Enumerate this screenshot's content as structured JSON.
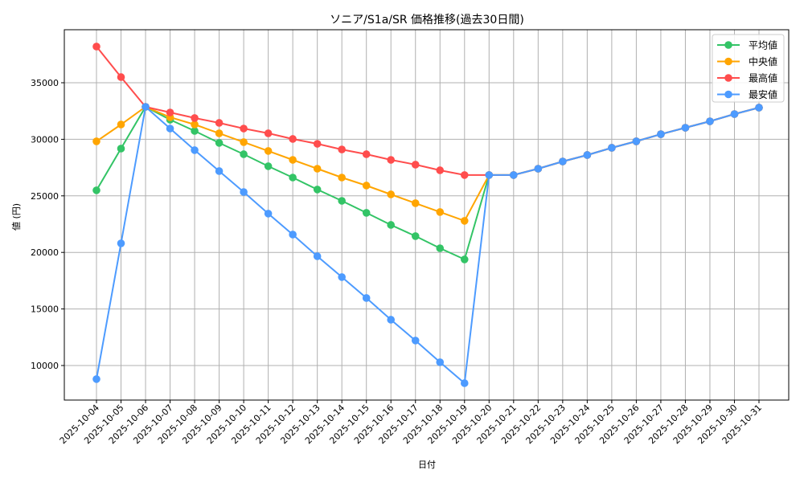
{
  "chart_data": {
    "type": "line",
    "title": "ソニア/S1a/SR 価格推移(過去30日間)",
    "xlabel": "日付",
    "ylabel": "値 (円)",
    "ylim": [
      6900,
      39500
    ],
    "yticks": [
      10000,
      15000,
      20000,
      25000,
      30000,
      35000
    ],
    "grid": true,
    "legend_position": "upper right",
    "categories": [
      "2025-10-04",
      "2025-10-05",
      "2025-10-06",
      "2025-10-07",
      "2025-10-08",
      "2025-10-09",
      "2025-10-10",
      "2025-10-11",
      "2025-10-12",
      "2025-10-13",
      "2025-10-14",
      "2025-10-15",
      "2025-10-16",
      "2025-10-17",
      "2025-10-18",
      "2025-10-19",
      "2025-10-20",
      "2025-10-21",
      "2025-10-22",
      "2025-10-23",
      "2025-10-24",
      "2025-10-25",
      "2025-10-26",
      "2025-10-27",
      "2025-10-28",
      "2025-10-29",
      "2025-10-30",
      "2025-10-31"
    ],
    "series": [
      {
        "name": "平均値",
        "color": "#33c466",
        "values": [
          25490,
          29180,
          32870,
          31730,
          30740,
          29680,
          28680,
          27620,
          26620,
          25560,
          24560,
          23500,
          22430,
          21440,
          20370,
          19380,
          26840,
          26840,
          27400,
          28040,
          28610,
          29250,
          29820,
          30450,
          31020,
          31590,
          32230,
          32800
        ]
      },
      {
        "name": "中央値",
        "color": "#ffa500",
        "values": [
          29820,
          31310,
          32870,
          31950,
          31310,
          30530,
          29750,
          28970,
          28180,
          27400,
          26620,
          25910,
          25130,
          24350,
          23570,
          22790,
          26840,
          26840,
          27400,
          28040,
          28610,
          29250,
          29820,
          30450,
          31020,
          31590,
          32230,
          32800
        ]
      },
      {
        "name": "最高値",
        "color": "#ff4d4d",
        "values": [
          38200,
          35500,
          32870,
          32370,
          31880,
          31450,
          30950,
          30530,
          30030,
          29600,
          29100,
          28680,
          28180,
          27760,
          27260,
          26840,
          26840,
          26840,
          27400,
          28040,
          28610,
          29250,
          29820,
          30450,
          31020,
          31590,
          32230,
          32800
        ]
      },
      {
        "name": "最安値",
        "color": "#4d9bff",
        "values": [
          8800,
          20800,
          32870,
          30950,
          29040,
          27190,
          25340,
          23430,
          21580,
          19660,
          17820,
          15970,
          14050,
          12210,
          10290,
          8440,
          26840,
          26840,
          27400,
          28040,
          28610,
          29250,
          29820,
          30450,
          31020,
          31590,
          32230,
          32800
        ]
      }
    ]
  }
}
